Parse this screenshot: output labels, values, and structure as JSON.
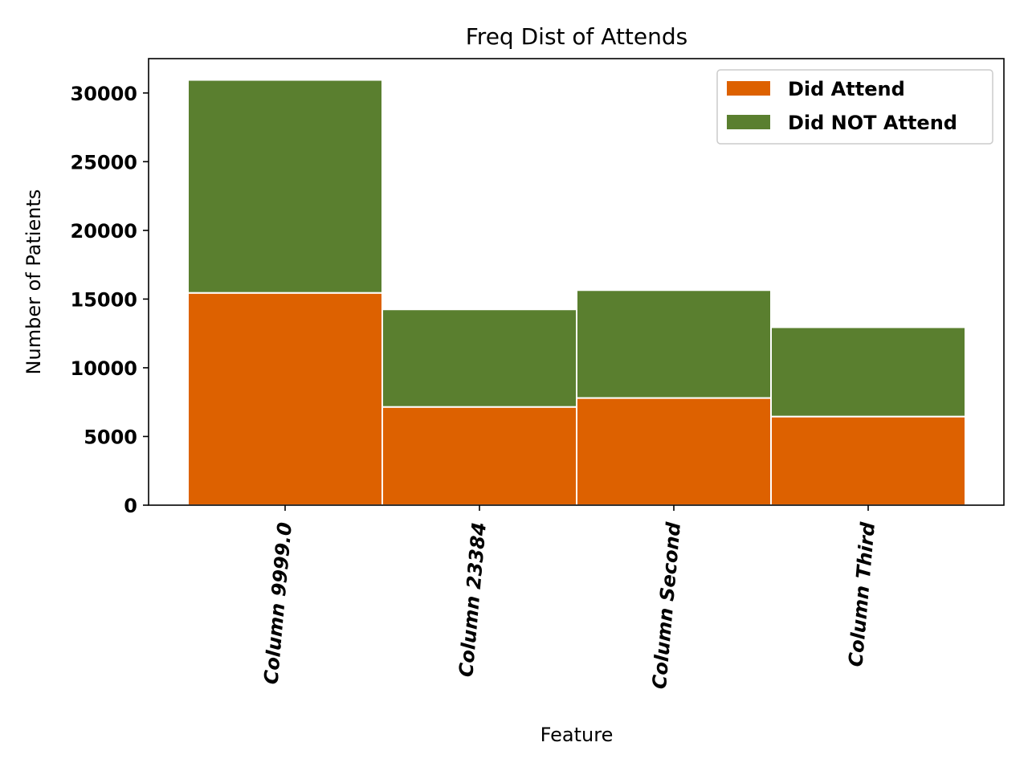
{
  "chart_data": {
    "type": "bar",
    "stacked": true,
    "title": "Freq Dist of Attends",
    "xlabel": "Feature",
    "ylabel": "Number of Patients",
    "categories": [
      "Column 9999.0",
      "Column 23384",
      "Column Second",
      "Column Third"
    ],
    "series": [
      {
        "name": "Did Attend",
        "color": "#dd6100",
        "values": [
          15450,
          7150,
          7800,
          6450
        ]
      },
      {
        "name": "Did NOT Attend",
        "color": "#5a7f2f",
        "values": [
          15500,
          7100,
          7850,
          6500
        ]
      }
    ],
    "yticks": [
      0,
      5000,
      10000,
      15000,
      20000,
      25000,
      30000
    ],
    "ylim": [
      0,
      32500
    ],
    "legend_position": "top-right",
    "grid": false
  }
}
